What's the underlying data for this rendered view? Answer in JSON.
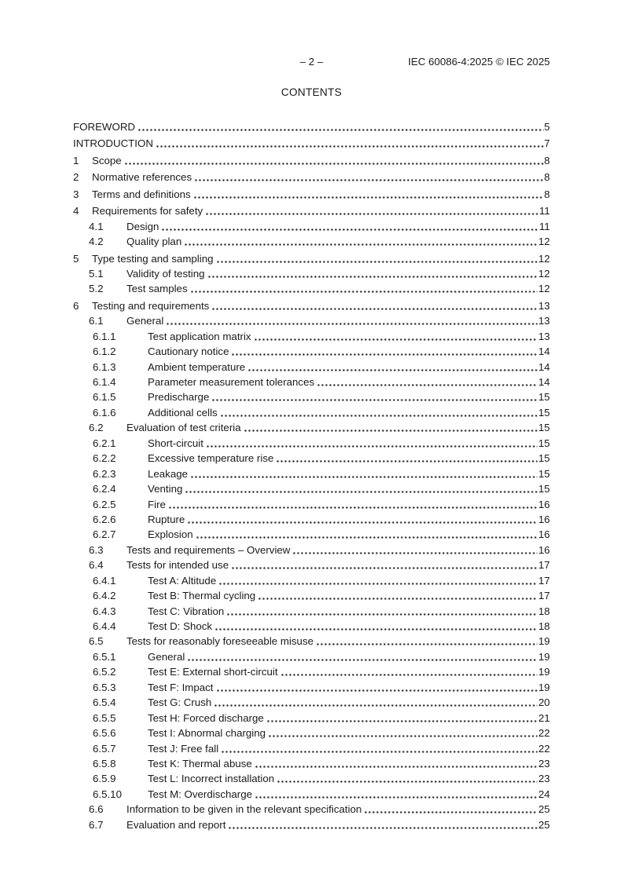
{
  "header": {
    "page_marker": "– 2 –",
    "doc_ref": "IEC 60086-4:2025 © IEC 2025"
  },
  "title": "CONTENTS",
  "toc": {
    "entries": [
      {
        "level": 0,
        "num": "",
        "title": "FOREWORD",
        "page": "5"
      },
      {
        "level": 0,
        "num": "",
        "title": "INTRODUCTION",
        "page": "7"
      },
      {
        "level": 1,
        "num": "1",
        "title": "Scope",
        "page": "8"
      },
      {
        "level": 1,
        "num": "2",
        "title": "Normative references",
        "page": "8"
      },
      {
        "level": 1,
        "num": "3",
        "title": "Terms and definitions",
        "page": "8"
      },
      {
        "level": 1,
        "num": "4",
        "title": "Requirements for safety",
        "page": "11"
      },
      {
        "level": 2,
        "num": "4.1",
        "title": "Design",
        "page": "11"
      },
      {
        "level": 2,
        "num": "4.2",
        "title": "Quality plan",
        "page": "12"
      },
      {
        "level": 1,
        "num": "5",
        "title": "Type testing and sampling",
        "page": "12"
      },
      {
        "level": 2,
        "num": "5.1",
        "title": "Validity of testing",
        "page": "12"
      },
      {
        "level": 2,
        "num": "5.2",
        "title": "Test samples",
        "page": "12"
      },
      {
        "level": 1,
        "num": "6",
        "title": "Testing and requirements",
        "page": "13"
      },
      {
        "level": 2,
        "num": "6.1",
        "title": "General",
        "page": "13"
      },
      {
        "level": 3,
        "num": "6.1.1",
        "title": "Test application matrix",
        "page": "13"
      },
      {
        "level": 3,
        "num": "6.1.2",
        "title": "Cautionary notice",
        "page": "14"
      },
      {
        "level": 3,
        "num": "6.1.3",
        "title": "Ambient temperature",
        "page": "14"
      },
      {
        "level": 3,
        "num": "6.1.4",
        "title": "Parameter measurement tolerances",
        "page": "14"
      },
      {
        "level": 3,
        "num": "6.1.5",
        "title": "Predischarge",
        "page": "15"
      },
      {
        "level": 3,
        "num": "6.1.6",
        "title": "Additional cells",
        "page": "15"
      },
      {
        "level": 2,
        "num": "6.2",
        "title": "Evaluation of test criteria",
        "page": "15"
      },
      {
        "level": 3,
        "num": "6.2.1",
        "title": "Short-circuit",
        "page": "15"
      },
      {
        "level": 3,
        "num": "6.2.2",
        "title": "Excessive temperature rise",
        "page": "15"
      },
      {
        "level": 3,
        "num": "6.2.3",
        "title": "Leakage",
        "page": "15"
      },
      {
        "level": 3,
        "num": "6.2.4",
        "title": "Venting",
        "page": "15"
      },
      {
        "level": 3,
        "num": "6.2.5",
        "title": "Fire",
        "page": "16"
      },
      {
        "level": 3,
        "num": "6.2.6",
        "title": "Rupture",
        "page": "16"
      },
      {
        "level": 3,
        "num": "6.2.7",
        "title": "Explosion",
        "page": "16"
      },
      {
        "level": 2,
        "num": "6.3",
        "title": "Tests and requirements – Overview",
        "page": "16"
      },
      {
        "level": 2,
        "num": "6.4",
        "title": "Tests for intended use",
        "page": "17"
      },
      {
        "level": 3,
        "num": "6.4.1",
        "title": "Test A: Altitude",
        "page": "17"
      },
      {
        "level": 3,
        "num": "6.4.2",
        "title": "Test B: Thermal cycling",
        "page": "17"
      },
      {
        "level": 3,
        "num": "6.4.3",
        "title": "Test C: Vibration",
        "page": "18"
      },
      {
        "level": 3,
        "num": "6.4.4",
        "title": "Test D: Shock",
        "page": "18"
      },
      {
        "level": 2,
        "num": "6.5",
        "title": "Tests for reasonably foreseeable misuse",
        "page": "19"
      },
      {
        "level": 3,
        "num": "6.5.1",
        "title": "General",
        "page": "19"
      },
      {
        "level": 3,
        "num": "6.5.2",
        "title": "Test E: External short-circuit",
        "page": "19"
      },
      {
        "level": 3,
        "num": "6.5.3",
        "title": "Test F: Impact",
        "page": "19"
      },
      {
        "level": 3,
        "num": "6.5.4",
        "title": "Test G: Crush",
        "page": "20"
      },
      {
        "level": 3,
        "num": "6.5.5",
        "title": "Test H: Forced discharge",
        "page": "21"
      },
      {
        "level": 3,
        "num": "6.5.6",
        "title": "Test I: Abnormal charging",
        "page": "22"
      },
      {
        "level": 3,
        "num": "6.5.7",
        "title": "Test J: Free fall",
        "page": "22"
      },
      {
        "level": 3,
        "num": "6.5.8",
        "title": "Test K: Thermal abuse",
        "page": "23"
      },
      {
        "level": 3,
        "num": "6.5.9",
        "title": "Test L: Incorrect installation",
        "page": "23"
      },
      {
        "level": 3,
        "num": "6.5.10",
        "title": "Test M: Overdischarge",
        "page": "24"
      },
      {
        "level": 2,
        "num": "6.6",
        "title": "Information to be given in the relevant specification",
        "page": "25"
      },
      {
        "level": 2,
        "num": "6.7",
        "title": "Evaluation and report",
        "page": "25"
      }
    ]
  }
}
